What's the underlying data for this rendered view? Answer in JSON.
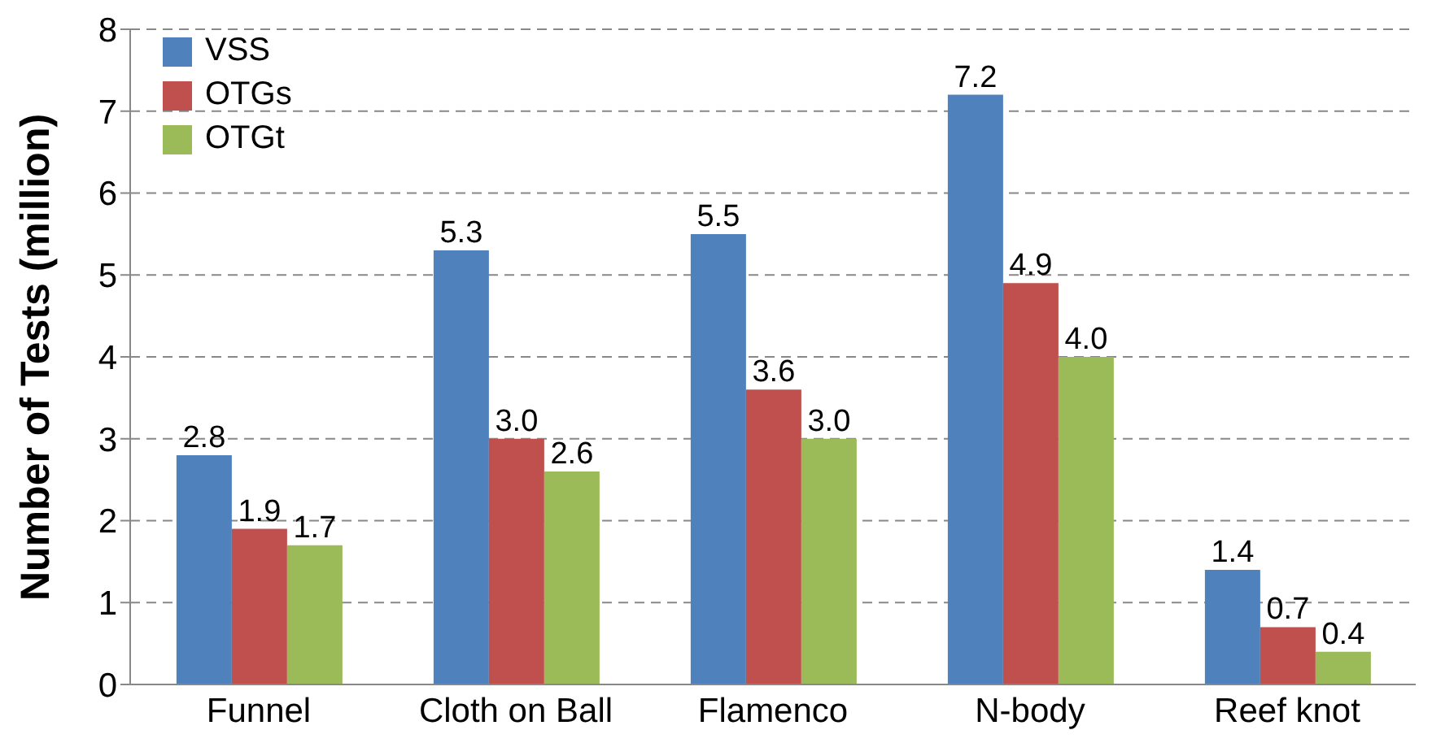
{
  "chart_data": {
    "type": "bar",
    "ylabel": "Number of Tests (million)",
    "categories": [
      "Funnel",
      "Cloth on Ball",
      "Flamenco",
      "N-body",
      "Reef knot"
    ],
    "series": [
      {
        "name": "VSS",
        "color": "#4f81bd",
        "values": [
          2.8,
          5.3,
          5.5,
          7.2,
          1.4
        ],
        "value_labels": [
          "2.8",
          "5.3",
          "5.5",
          "7.2",
          "1.4"
        ]
      },
      {
        "name": "OTGs",
        "color": "#c0504d",
        "values": [
          1.9,
          3.0,
          3.6,
          4.9,
          0.7
        ],
        "value_labels": [
          "1.9",
          "3.0",
          "3.6",
          "4.9",
          "0.7"
        ]
      },
      {
        "name": "OTGt",
        "color": "#9bbb59",
        "values": [
          1.7,
          2.6,
          3.0,
          4.0,
          0.4
        ],
        "value_labels": [
          "1.7",
          "2.6",
          "3.0",
          "4.0",
          "0.4"
        ]
      }
    ],
    "ylim": [
      0,
      8
    ],
    "yticks": [
      0,
      1,
      2,
      3,
      4,
      5,
      6,
      7,
      8
    ],
    "grid": "y",
    "legend": "top left"
  }
}
